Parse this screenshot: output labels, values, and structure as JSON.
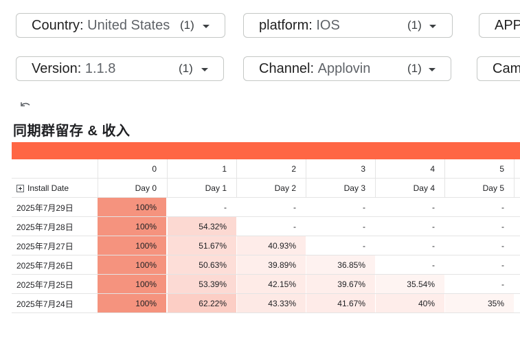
{
  "filters": {
    "country": {
      "label": "Country",
      "value": "United States",
      "count": "(1)"
    },
    "platform": {
      "label": "platform",
      "value": "IOS",
      "count": "(1)"
    },
    "app": {
      "label": "APP"
    },
    "version": {
      "label": "Version",
      "value": "1.1.8",
      "count": "(1)"
    },
    "channel": {
      "label": "Channel",
      "value": "Applovin",
      "count": "(1)"
    },
    "campaign": {
      "label": "Cam"
    }
  },
  "title": "同期群留存 & 收入",
  "colors": {
    "accent": "#ff6644",
    "cell_day0": "#f5937e"
  },
  "table": {
    "index_header": [
      "0",
      "1",
      "2",
      "3",
      "4",
      "5"
    ],
    "row_header": "Install Date",
    "day_header": [
      "Day 0",
      "Day 1",
      "Day 2",
      "Day 3",
      "Day 4",
      "Day 5"
    ],
    "rows": [
      {
        "date": "2025年7月29日",
        "values": [
          "100%",
          "-",
          "-",
          "-",
          "-",
          "-"
        ]
      },
      {
        "date": "2025年7月28日",
        "values": [
          "100%",
          "54.32%",
          "-",
          "-",
          "-",
          "-"
        ]
      },
      {
        "date": "2025年7月27日",
        "values": [
          "100%",
          "51.67%",
          "40.93%",
          "-",
          "-",
          "-"
        ]
      },
      {
        "date": "2025年7月26日",
        "values": [
          "100%",
          "50.63%",
          "39.89%",
          "36.85%",
          "-",
          "-"
        ]
      },
      {
        "date": "2025年7月25日",
        "values": [
          "100%",
          "53.39%",
          "42.15%",
          "39.67%",
          "35.54%",
          "-"
        ]
      },
      {
        "date": "2025年7月24日",
        "values": [
          "100%",
          "62.22%",
          "43.33%",
          "41.67%",
          "40%",
          "35%"
        ]
      }
    ]
  }
}
